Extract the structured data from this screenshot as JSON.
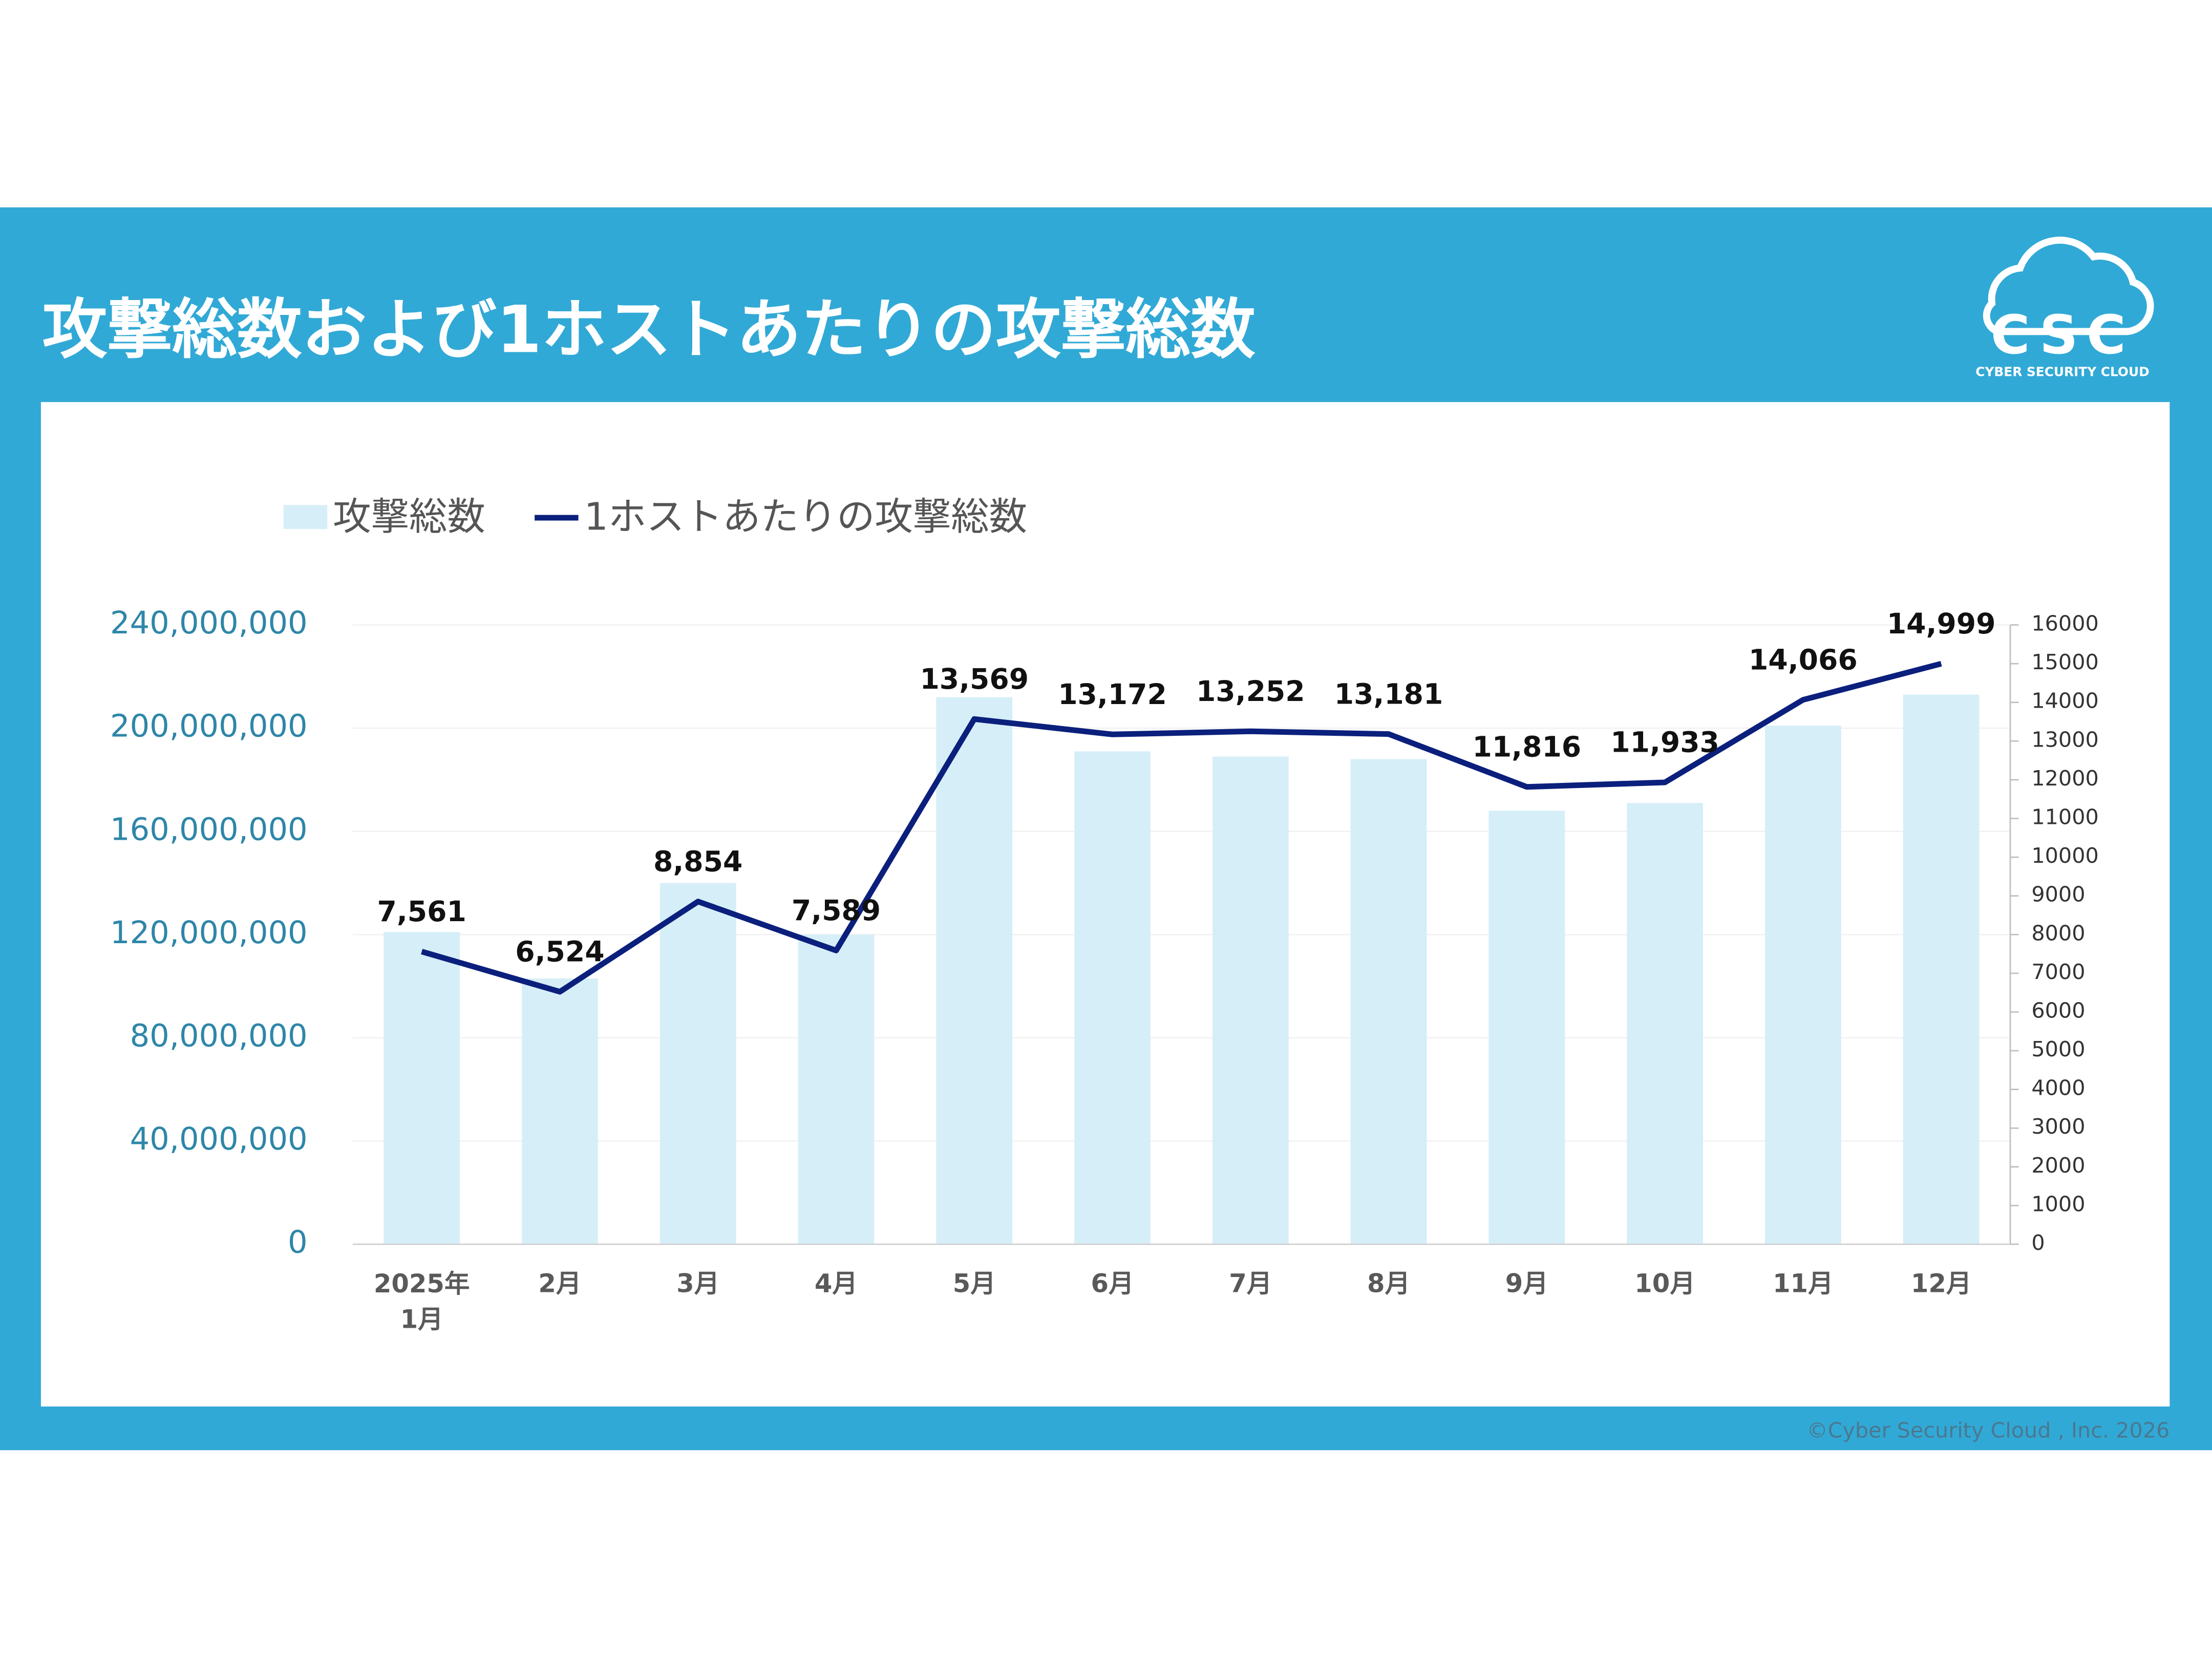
{
  "header": {
    "title": "攻撃総数および1ホストあたりの攻撃総数",
    "logo": "CSC",
    "logo_subtitle": "CYBER SECURITY CLOUD"
  },
  "chart_data": {
    "type": "bar-line",
    "categories": [
      "2025年\n1月",
      "2月",
      "3月",
      "4月",
      "5月",
      "6月",
      "7月",
      "8月",
      "9月",
      "10月",
      "11月",
      "12月"
    ],
    "series": [
      {
        "name": "攻撃総数",
        "type": "bar",
        "color": "#d6eef8",
        "values": [
          121000000,
          103000000,
          140000000,
          120000000,
          212000000,
          191000000,
          189000000,
          188000000,
          168000000,
          171000000,
          201000000,
          213000000
        ]
      },
      {
        "name": "1ホストあたりの攻撃総数",
        "type": "line",
        "axis": "y2",
        "color": "#0b1f7c",
        "values": [
          7561,
          6524,
          8854,
          7589,
          13569,
          13172,
          13252,
          13181,
          11816,
          11933,
          14066,
          14999
        ],
        "value_labels": [
          "7,561",
          "6,524",
          "8,854",
          "7,589",
          "13,569",
          "13,172",
          "13,252",
          "13,181",
          "11,816",
          "11,933",
          "14,066",
          "14,999"
        ]
      }
    ],
    "ylim": [
      0,
      240000000
    ],
    "yticks": [
      0,
      {
        "value": 40000000,
        "label": "40,000,000"
      },
      {
        "value": 80000000,
        "label": "80,000,000"
      },
      {
        "value": 120000000,
        "label": "120,000,000"
      },
      {
        "value": 160000000,
        "label": "160,000,000"
      },
      {
        "value": 200000000,
        "label": "200,000,000"
      },
      {
        "value": 240000000,
        "label": "240,000,000"
      }
    ],
    "y2lim": [
      0,
      16000
    ],
    "y2ticks": [
      0,
      1000,
      2000,
      3000,
      4000,
      5000,
      6000,
      7000,
      8000,
      9000,
      10000,
      11000,
      12000,
      13000,
      14000,
      15000,
      16000
    ],
    "grid": true
  },
  "footer": "©Cyber Security Cloud , Inc. 2026"
}
